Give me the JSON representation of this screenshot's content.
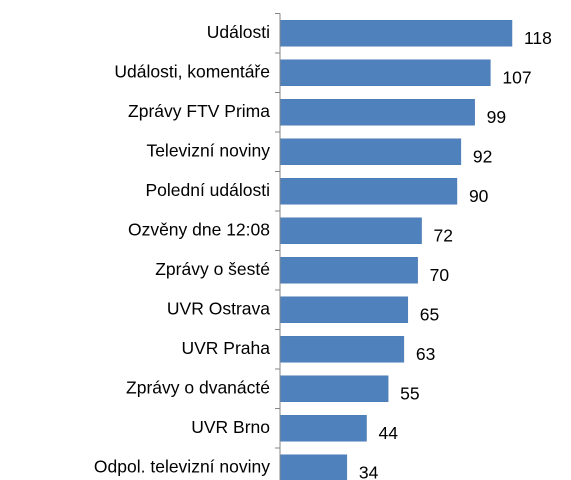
{
  "chart_data": {
    "type": "bar",
    "orientation": "horizontal",
    "categories": [
      "Události",
      "Události, komentáře",
      "Zprávy FTV Prima",
      "Televizní noviny",
      "Polední události",
      "Ozvěny dne 12:08",
      "Zprávy o šesté",
      "UVR Ostrava",
      "UVR Praha",
      "Zprávy o dvanácté",
      "UVR Brno",
      "Odpol. televizní noviny"
    ],
    "values": [
      118,
      107,
      99,
      92,
      90,
      72,
      70,
      65,
      63,
      55,
      44,
      34
    ],
    "color": "#4f81bd"
  }
}
